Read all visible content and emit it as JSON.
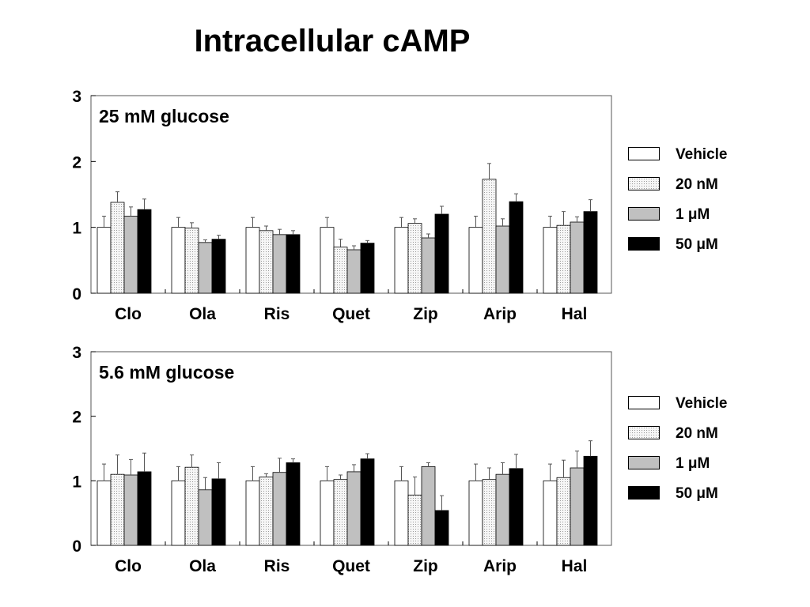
{
  "title": "Intracellular cAMP",
  "legend": [
    {
      "label": "Vehicle",
      "fill": "#ffffff",
      "pattern": false
    },
    {
      "label": "20 nM",
      "fill": "#f0f0f0",
      "pattern": true
    },
    {
      "label": "1 μM",
      "fill": "#c0c0c0",
      "pattern": false
    },
    {
      "label": "50 μM",
      "fill": "#000000",
      "pattern": false
    }
  ],
  "chart_data": [
    {
      "type": "bar",
      "title": "25 mM glucose",
      "categories": [
        "Clo",
        "Ola",
        "Ris",
        "Quet",
        "Zip",
        "Arip",
        "Hal"
      ],
      "ylim": [
        0,
        3
      ],
      "yticks": [
        0,
        1,
        2,
        3
      ],
      "series": [
        {
          "name": "Vehicle",
          "values": [
            1.0,
            1.0,
            1.0,
            1.0,
            1.0,
            1.0,
            1.0
          ],
          "errors": [
            0.17,
            0.15,
            0.15,
            0.15,
            0.15,
            0.17,
            0.17
          ]
        },
        {
          "name": "20 nM",
          "values": [
            1.38,
            0.99,
            0.95,
            0.7,
            1.06,
            1.73,
            1.03
          ],
          "errors": [
            0.16,
            0.08,
            0.07,
            0.12,
            0.07,
            0.24,
            0.21
          ]
        },
        {
          "name": "1 μM",
          "values": [
            1.17,
            0.77,
            0.89,
            0.66,
            0.84,
            1.02,
            1.08
          ],
          "errors": [
            0.14,
            0.04,
            0.08,
            0.06,
            0.06,
            0.11,
            0.08
          ]
        },
        {
          "name": "50 μM",
          "values": [
            1.27,
            0.82,
            0.89,
            0.76,
            1.2,
            1.39,
            1.24
          ],
          "errors": [
            0.16,
            0.06,
            0.06,
            0.04,
            0.12,
            0.12,
            0.18
          ]
        }
      ]
    },
    {
      "type": "bar",
      "title": "5.6 mM glucose",
      "categories": [
        "Clo",
        "Ola",
        "Ris",
        "Quet",
        "Zip",
        "Arip",
        "Hal"
      ],
      "ylim": [
        0,
        3
      ],
      "yticks": [
        0,
        1,
        2,
        3
      ],
      "series": [
        {
          "name": "Vehicle",
          "values": [
            1.0,
            1.0,
            1.0,
            1.0,
            1.0,
            1.0,
            1.0
          ],
          "errors": [
            0.26,
            0.22,
            0.22,
            0.22,
            0.22,
            0.26,
            0.26
          ]
        },
        {
          "name": "20 nM",
          "values": [
            1.1,
            1.21,
            1.06,
            1.02,
            0.78,
            1.02,
            1.05
          ],
          "errors": [
            0.3,
            0.19,
            0.05,
            0.07,
            0.28,
            0.18,
            0.27
          ]
        },
        {
          "name": "1 μM",
          "values": [
            1.09,
            0.86,
            1.13,
            1.14,
            1.22,
            1.1,
            1.2
          ],
          "errors": [
            0.24,
            0.19,
            0.22,
            0.11,
            0.06,
            0.18,
            0.26
          ]
        },
        {
          "name": "50 μM",
          "values": [
            1.14,
            1.03,
            1.28,
            1.34,
            0.54,
            1.19,
            1.38
          ],
          "errors": [
            0.29,
            0.25,
            0.06,
            0.08,
            0.23,
            0.22,
            0.24
          ]
        }
      ]
    }
  ]
}
